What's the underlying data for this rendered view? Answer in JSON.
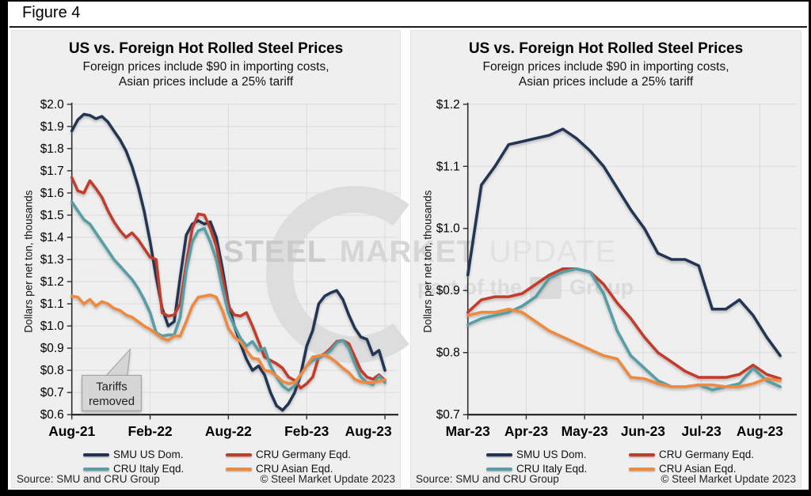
{
  "figure_label": "Figure 4",
  "source_left": "Source: SMU and CRU Group",
  "source_right": "© Steel Market Update 2023",
  "watermark": {
    "steel": "STEEL",
    "market": "MARKET",
    "update": "UPDATE",
    "part_of_the": "part of the",
    "group": "Group"
  },
  "colors": {
    "navy": "#213454",
    "red": "#C43B2C",
    "teal": "#579EA6",
    "orange": "#F0893C",
    "panel": "#EFEFEF",
    "grid": "#DBDBDB"
  },
  "chart_data": [
    {
      "type": "line",
      "title": "US vs. Foreign Hot Rolled Steel Prices",
      "subtitle_line1": "Foreign prices include $90 in importing costs,",
      "subtitle_line2": "Asian prices include a 25% tariff",
      "ylabel": "Dollars per net ton, thousands",
      "ylim": [
        0.6,
        2.0
      ],
      "grid": true,
      "legend_position": "bottom",
      "yticks": {
        "values": [
          2.0,
          1.9,
          1.8,
          1.7,
          1.6,
          1.5,
          1.4,
          1.3,
          1.2,
          1.1,
          1.0,
          0.9,
          0.8,
          0.7,
          0.6
        ],
        "labels": [
          "$2.0",
          "$1.9",
          "$1.8",
          "$1.7",
          "$1.6",
          "$1.5",
          "$1.4",
          "$1.3",
          "$1.2",
          "$1.1",
          "$1.0",
          "$0.9",
          "$0.8",
          "$0.7",
          "$0.6"
        ]
      },
      "xticks": [
        "Aug-21",
        "Feb-22",
        "Aug-22",
        "Feb-23",
        "Aug-23"
      ],
      "annotation": {
        "line1": "Tariffs",
        "line2": "removed"
      },
      "series": [
        {
          "name": "SMU US Dom.",
          "color": "navy",
          "values": [
            1.88,
            1.93,
            1.955,
            1.95,
            1.935,
            1.945,
            1.92,
            1.88,
            1.84,
            1.79,
            1.72,
            1.63,
            1.52,
            1.38,
            1.22,
            1.08,
            1.0,
            1.02,
            1.22,
            1.41,
            1.46,
            1.475,
            1.46,
            1.47,
            1.4,
            1.26,
            1.1,
            1.0,
            0.92,
            0.85,
            0.8,
            0.82,
            0.78,
            0.7,
            0.64,
            0.62,
            0.65,
            0.7,
            0.78,
            0.91,
            0.98,
            1.1,
            1.135,
            1.15,
            1.16,
            1.12,
            1.05,
            0.99,
            0.95,
            0.94,
            0.87,
            0.89,
            0.8
          ]
        },
        {
          "name": "CRU Germany Eqd.",
          "color": "red",
          "values": [
            1.67,
            1.61,
            1.6,
            1.655,
            1.62,
            1.58,
            1.52,
            1.47,
            1.43,
            1.4,
            1.42,
            1.39,
            1.35,
            1.31,
            1.3,
            1.06,
            1.045,
            1.05,
            1.1,
            1.28,
            1.44,
            1.505,
            1.5,
            1.44,
            1.36,
            1.22,
            1.09,
            1.05,
            1.045,
            1.06,
            1.0,
            0.93,
            0.86,
            0.845,
            0.83,
            0.81,
            0.77,
            0.755,
            0.72,
            0.74,
            0.77,
            0.86,
            0.875,
            0.9,
            0.93,
            0.935,
            0.92,
            0.86,
            0.8,
            0.77,
            0.76,
            0.78,
            0.755
          ]
        },
        {
          "name": "CRU Italy Eqd.",
          "color": "teal",
          "values": [
            1.56,
            1.52,
            1.48,
            1.46,
            1.42,
            1.38,
            1.34,
            1.3,
            1.27,
            1.24,
            1.21,
            1.17,
            1.12,
            1.06,
            0.97,
            0.955,
            0.96,
            0.96,
            1.04,
            1.25,
            1.38,
            1.43,
            1.44,
            1.38,
            1.3,
            1.17,
            1.06,
            1.0,
            0.945,
            0.91,
            0.93,
            0.89,
            0.9,
            0.82,
            0.77,
            0.73,
            0.71,
            0.73,
            0.78,
            0.82,
            0.845,
            0.855,
            0.87,
            0.89,
            0.925,
            0.935,
            0.9,
            0.83,
            0.77,
            0.745,
            0.735,
            0.775,
            0.745
          ]
        },
        {
          "name": "CRU Asian Eqd.",
          "color": "orange",
          "values": [
            1.135,
            1.13,
            1.1,
            1.12,
            1.09,
            1.11,
            1.1,
            1.08,
            1.07,
            1.05,
            1.04,
            1.02,
            1.0,
            0.985,
            0.965,
            0.945,
            0.935,
            0.955,
            0.955,
            1.02,
            1.09,
            1.13,
            1.135,
            1.14,
            1.13,
            1.07,
            0.99,
            0.95,
            0.93,
            0.89,
            0.855,
            0.85,
            0.8,
            0.795,
            0.775,
            0.75,
            0.74,
            0.745,
            0.78,
            0.82,
            0.86,
            0.865,
            0.87,
            0.855,
            0.835,
            0.81,
            0.79,
            0.76,
            0.748,
            0.745,
            0.745,
            0.75,
            0.758
          ]
        }
      ]
    },
    {
      "type": "line",
      "title": "US vs. Foreign Hot Rolled Steel Prices",
      "subtitle_line1": "Foreign prices include $90 in importing costs,",
      "subtitle_line2": "Asian prices include a 25% tariff",
      "ylabel": "Dollars per net ton, thousands",
      "ylim": [
        0.7,
        1.2
      ],
      "grid": true,
      "legend_position": "bottom",
      "yticks": {
        "values": [
          1.2,
          1.1,
          1.0,
          0.9,
          0.8,
          0.7
        ],
        "labels": [
          "$1.2",
          "$1.1",
          "$1.0",
          "$0.9",
          "$0.8",
          "$0.7"
        ]
      },
      "xticks": [
        "Mar-23",
        "Apr-23",
        "May-23",
        "Jun-23",
        "Jul-23",
        "Aug-23"
      ],
      "series": [
        {
          "name": "SMU US Dom.",
          "color": "navy",
          "values": [
            0.925,
            1.07,
            1.1,
            1.135,
            1.14,
            1.145,
            1.15,
            1.16,
            1.145,
            1.125,
            1.1,
            1.065,
            1.03,
            1.0,
            0.96,
            0.95,
            0.95,
            0.94,
            0.87,
            0.87,
            0.885,
            0.86,
            0.825,
            0.795
          ]
        },
        {
          "name": "CRU Germany Eqd.",
          "color": "red",
          "values": [
            0.865,
            0.885,
            0.89,
            0.89,
            0.895,
            0.91,
            0.925,
            0.935,
            0.935,
            0.93,
            0.91,
            0.88,
            0.855,
            0.825,
            0.8,
            0.785,
            0.77,
            0.76,
            0.76,
            0.76,
            0.765,
            0.78,
            0.765,
            0.758
          ]
        },
        {
          "name": "CRU Italy Eqd.",
          "color": "teal",
          "values": [
            0.845,
            0.855,
            0.86,
            0.865,
            0.875,
            0.89,
            0.92,
            0.93,
            0.935,
            0.93,
            0.895,
            0.835,
            0.795,
            0.775,
            0.755,
            0.745,
            0.745,
            0.748,
            0.74,
            0.745,
            0.75,
            0.775,
            0.755,
            0.745
          ]
        },
        {
          "name": "CRU Asian Eqd.",
          "color": "orange",
          "values": [
            0.86,
            0.865,
            0.865,
            0.87,
            0.865,
            0.85,
            0.835,
            0.825,
            0.815,
            0.805,
            0.795,
            0.79,
            0.76,
            0.758,
            0.75,
            0.745,
            0.745,
            0.748,
            0.748,
            0.745,
            0.745,
            0.75,
            0.758,
            0.755
          ]
        }
      ]
    }
  ]
}
